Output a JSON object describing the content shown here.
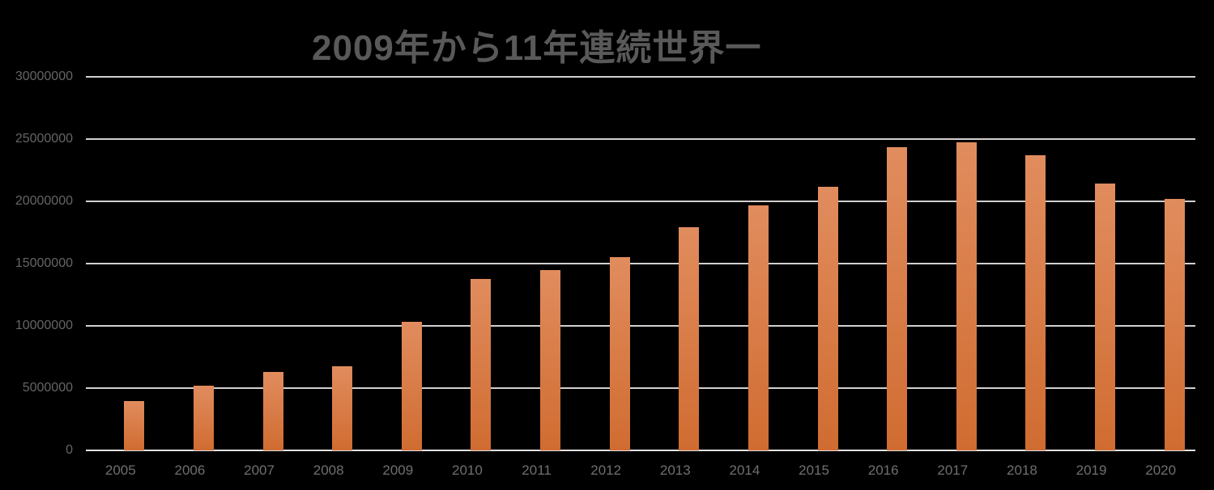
{
  "background_color": "#000000",
  "chart_data": {
    "type": "bar",
    "title": "2009年から11年連続世界一",
    "categories": [
      "2005",
      "2006",
      "2007",
      "2008",
      "2009",
      "2010",
      "2011",
      "2012",
      "2013",
      "2014",
      "2015",
      "2016",
      "2017",
      "2018",
      "2019",
      "2020"
    ],
    "values": [
      3970000,
      5180000,
      6300000,
      6760000,
      10330000,
      13760000,
      14470000,
      15490000,
      17930000,
      19700000,
      21150000,
      24380000,
      24720000,
      23710000,
      21440000,
      20180000
    ],
    "xlabel": "",
    "ylabel": "",
    "ylim": [
      0,
      30000000
    ],
    "yticks": [
      {
        "value": 0,
        "label": "0"
      },
      {
        "value": 5000000,
        "label": "5000000"
      },
      {
        "value": 10000000,
        "label": "10000000"
      },
      {
        "value": 15000000,
        "label": "15000000"
      },
      {
        "value": 20000000,
        "label": "20000000"
      },
      {
        "value": 25000000,
        "label": "25000000"
      },
      {
        "value": 30000000,
        "label": "30000000"
      }
    ],
    "grid": true,
    "legend": false,
    "colors": {
      "background": "#000000",
      "title_text": "#595959",
      "y_tick_text": "#656565",
      "x_tick_text": "#6f6f6f",
      "gridline": "#d2cfcf",
      "axis_line": "#e4e1e1",
      "bar_gradient_top": "#e18c5e",
      "bar_gradient_bottom": "#d06c31"
    }
  }
}
